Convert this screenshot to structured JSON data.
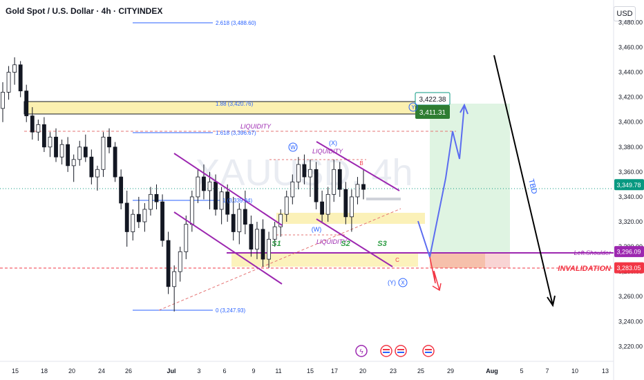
{
  "header": {
    "title": "Gold Spot / U.S. Dollar · 4h · CITYINDEX",
    "currency_button": "USD"
  },
  "watermark": "XAUUSD, 4h",
  "chart_data": {
    "type": "candlestick",
    "symbol": "XAUUSD",
    "timeframe": "4h",
    "ylim": [
      3208,
      3498
    ],
    "y_ticks": [
      3220,
      3240,
      3260,
      3280,
      3300,
      3320,
      3340,
      3360,
      3380,
      3400,
      3420,
      3440,
      3460,
      3480
    ],
    "x_ticks": [
      "15",
      "18",
      "20",
      "24",
      "26",
      "Jul",
      "3",
      "6",
      "9",
      "11",
      "15",
      "17",
      "20",
      "23",
      "25",
      "29",
      "Aug",
      "5",
      "7",
      "10",
      "13"
    ],
    "price_labels": [
      {
        "value": 3349.78,
        "text": "3,349.78",
        "color": "#089981"
      },
      {
        "value": 3296.09,
        "text": "3,296.09",
        "color": "#9c27b0"
      },
      {
        "value": 3283.05,
        "text": "3,283.05",
        "color": "#f23645"
      }
    ],
    "fib_levels": [
      {
        "text": "2.618 (3,488.60)",
        "value": 3488.6
      },
      {
        "text": "1.88 (3,420.76)",
        "value": 3420.76
      },
      {
        "text": "1.618 (3,396.67)",
        "value": 3396.67
      },
      {
        "text": "1 (3,339.84)",
        "value": 3339.84
      },
      {
        "text": "0 (3,247.93)",
        "value": 3247.93
      }
    ],
    "target_box": {
      "upper_text": "3,422.38",
      "lower_text": "3,411.31"
    },
    "annotations": {
      "liquidity": "LIQUIDITY",
      "wave_w": "W",
      "wave_x": "X",
      "wave_x_paren": "(X)",
      "wave_w_paren": "(W)",
      "wave_y_paren": "(Y)",
      "wave_y": "Y",
      "wave_b": "B",
      "wave_c": "C",
      "s1": "S1",
      "s2": "S2",
      "s3": "S3",
      "tbd": "TBD",
      "left_shoulder": "Left.Shoulder",
      "invalidation": "INVALIDATION"
    },
    "candles": [
      [
        3411,
        3432,
        3400,
        3424
      ],
      [
        3424,
        3445,
        3418,
        3440
      ],
      [
        3440,
        3452,
        3430,
        3446
      ],
      [
        3446,
        3449,
        3420,
        3425
      ],
      [
        3425,
        3430,
        3400,
        3405
      ],
      [
        3405,
        3412,
        3386,
        3392
      ],
      [
        3392,
        3402,
        3385,
        3398
      ],
      [
        3398,
        3404,
        3376,
        3380
      ],
      [
        3380,
        3392,
        3372,
        3388
      ],
      [
        3388,
        3395,
        3368,
        3372
      ],
      [
        3372,
        3386,
        3366,
        3382
      ],
      [
        3382,
        3388,
        3360,
        3365
      ],
      [
        3365,
        3374,
        3352,
        3370
      ],
      [
        3370,
        3385,
        3365,
        3380
      ],
      [
        3380,
        3390,
        3368,
        3372
      ],
      [
        3372,
        3378,
        3350,
        3356
      ],
      [
        3356,
        3365,
        3345,
        3362
      ],
      [
        3362,
        3392,
        3356,
        3388
      ],
      [
        3388,
        3395,
        3375,
        3380
      ],
      [
        3380,
        3384,
        3352,
        3356
      ],
      [
        3356,
        3362,
        3330,
        3335
      ],
      [
        3335,
        3345,
        3300,
        3312
      ],
      [
        3312,
        3330,
        3305,
        3326
      ],
      [
        3326,
        3340,
        3315,
        3320
      ],
      [
        3320,
        3335,
        3312,
        3330
      ],
      [
        3330,
        3348,
        3325,
        3342
      ],
      [
        3342,
        3350,
        3330,
        3336
      ],
      [
        3336,
        3342,
        3300,
        3305
      ],
      [
        3305,
        3312,
        3262,
        3268
      ],
      [
        3268,
        3285,
        3248,
        3280
      ],
      [
        3280,
        3300,
        3272,
        3296
      ],
      [
        3296,
        3325,
        3290,
        3318
      ],
      [
        3318,
        3345,
        3312,
        3340
      ],
      [
        3340,
        3362,
        3335,
        3356
      ],
      [
        3356,
        3366,
        3338,
        3345
      ],
      [
        3345,
        3360,
        3330,
        3352
      ],
      [
        3352,
        3358,
        3325,
        3330
      ],
      [
        3330,
        3348,
        3318,
        3344
      ],
      [
        3344,
        3350,
        3320,
        3326
      ],
      [
        3326,
        3340,
        3305,
        3312
      ],
      [
        3312,
        3335,
        3302,
        3330
      ],
      [
        3330,
        3345,
        3310,
        3318
      ],
      [
        3318,
        3325,
        3292,
        3298
      ],
      [
        3298,
        3320,
        3290,
        3314
      ],
      [
        3314,
        3322,
        3284,
        3290
      ],
      [
        3290,
        3312,
        3283,
        3306
      ],
      [
        3306,
        3320,
        3300,
        3316
      ],
      [
        3316,
        3330,
        3308,
        3326
      ],
      [
        3326,
        3345,
        3320,
        3340
      ],
      [
        3340,
        3358,
        3334,
        3352
      ],
      [
        3352,
        3372,
        3346,
        3366
      ],
      [
        3366,
        3374,
        3350,
        3356
      ],
      [
        3356,
        3370,
        3340,
        3362
      ],
      [
        3362,
        3368,
        3330,
        3336
      ],
      [
        3336,
        3345,
        3320,
        3326
      ],
      [
        3326,
        3348,
        3320,
        3342
      ],
      [
        3342,
        3370,
        3336,
        3362
      ],
      [
        3362,
        3368,
        3340,
        3346
      ],
      [
        3346,
        3352,
        3318,
        3324
      ],
      [
        3324,
        3346,
        3312,
        3340
      ],
      [
        3340,
        3356,
        3334,
        3350
      ],
      [
        3350,
        3362,
        3338,
        3346
      ]
    ]
  }
}
